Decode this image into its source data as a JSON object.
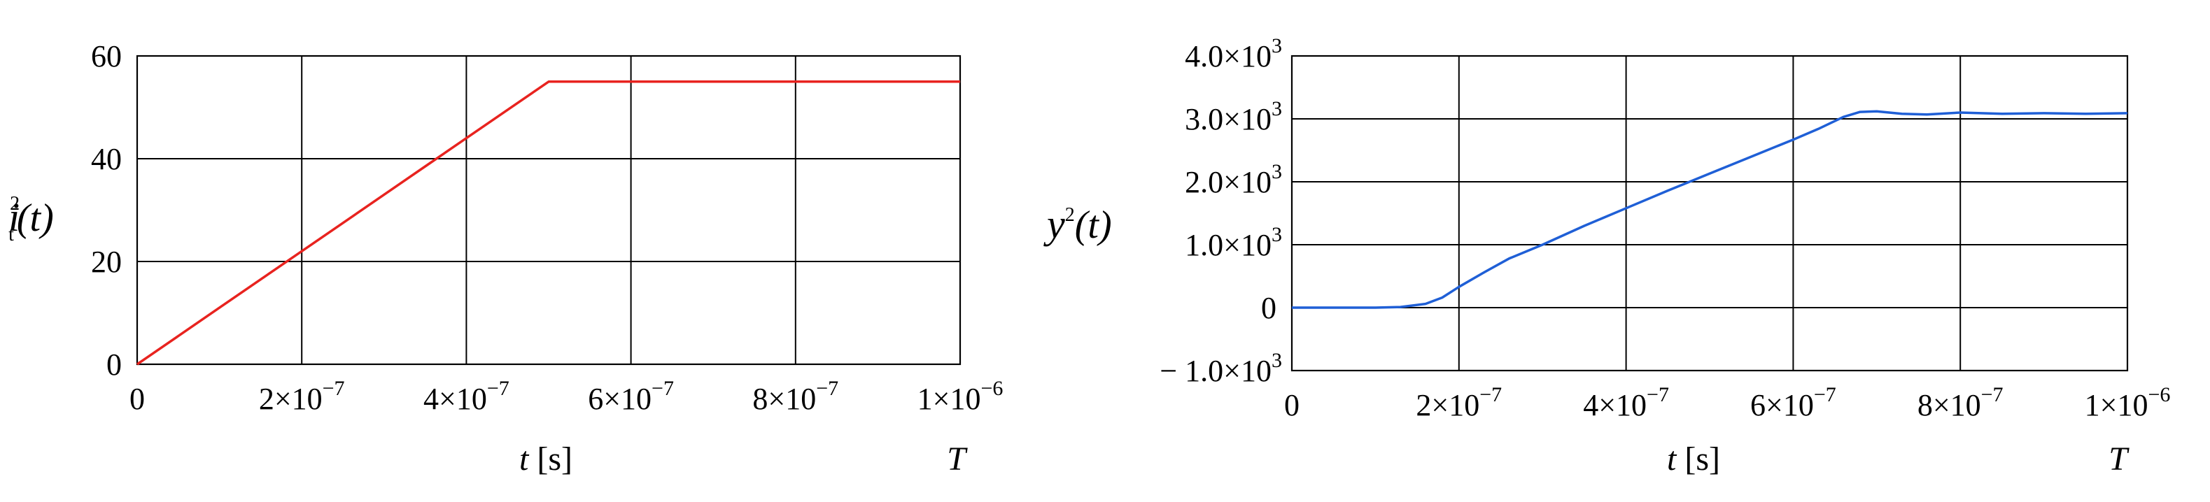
{
  "chart_data": [
    {
      "type": "line",
      "title": "",
      "xlabel": "t [s]",
      "xlabel_var": "t",
      "xlabel_unit": "[s]",
      "x_end_label": "T",
      "ylabel": "i_t^2(t)",
      "ylabel_parts": {
        "base": "i",
        "sub": "t",
        "sup": "2",
        "arg": "(t)"
      },
      "xlim": [
        0,
        1e-06
      ],
      "ylim": [
        0,
        60
      ],
      "grid": true,
      "x_ticks": [
        {
          "value": 0,
          "mant": "0",
          "exp": ""
        },
        {
          "value": 2e-07,
          "mant": "2×10",
          "exp": "−7"
        },
        {
          "value": 4e-07,
          "mant": "4×10",
          "exp": "−7"
        },
        {
          "value": 6e-07,
          "mant": "6×10",
          "exp": "−7"
        },
        {
          "value": 8e-07,
          "mant": "8×10",
          "exp": "−7"
        },
        {
          "value": 1e-06,
          "mant": "1×10",
          "exp": "−6"
        }
      ],
      "y_ticks": [
        {
          "value": 0,
          "mant": "0",
          "exp": ""
        },
        {
          "value": 20,
          "mant": "20",
          "exp": ""
        },
        {
          "value": 40,
          "mant": "40",
          "exp": ""
        },
        {
          "value": 60,
          "mant": "60",
          "exp": ""
        }
      ],
      "series": [
        {
          "color": "#e8231f",
          "x": [
            0,
            5e-08,
            1e-07,
            1.5e-07,
            2e-07,
            2.5e-07,
            3e-07,
            3.5e-07,
            4e-07,
            4.5e-07,
            5e-07,
            6e-07,
            7e-07,
            8e-07,
            9e-07,
            1e-06
          ],
          "y": [
            0,
            5.5,
            11,
            16.5,
            22,
            27.5,
            33,
            38.5,
            44,
            49.5,
            55,
            55,
            55,
            55,
            55,
            55
          ]
        }
      ]
    },
    {
      "type": "line",
      "title": "",
      "xlabel": "t [s]",
      "xlabel_var": "t",
      "xlabel_unit": "[s]",
      "x_end_label": "T",
      "ylabel": "y^2(t)",
      "ylabel_parts": {
        "base": "y",
        "sub": "",
        "sup": "2",
        "arg": "(t)"
      },
      "xlim": [
        0,
        1e-06
      ],
      "ylim": [
        -1000,
        4000
      ],
      "grid": true,
      "x_ticks": [
        {
          "value": 0,
          "mant": "0",
          "exp": ""
        },
        {
          "value": 2e-07,
          "mant": "2×10",
          "exp": "−7"
        },
        {
          "value": 4e-07,
          "mant": "4×10",
          "exp": "−7"
        },
        {
          "value": 6e-07,
          "mant": "6×10",
          "exp": "−7"
        },
        {
          "value": 8e-07,
          "mant": "8×10",
          "exp": "−7"
        },
        {
          "value": 1e-06,
          "mant": "1×10",
          "exp": "−6"
        }
      ],
      "y_ticks": [
        {
          "value": -1000,
          "mant": "− 1.0×10",
          "exp": "3"
        },
        {
          "value": 0,
          "mant": "0",
          "exp": ""
        },
        {
          "value": 1000,
          "mant": "1.0×10",
          "exp": "3"
        },
        {
          "value": 2000,
          "mant": "2.0×10",
          "exp": "3"
        },
        {
          "value": 3000,
          "mant": "3.0×10",
          "exp": "3"
        },
        {
          "value": 4000,
          "mant": "4.0×10",
          "exp": "3"
        }
      ],
      "series": [
        {
          "color": "#1f5fd6",
          "x": [
            0,
            5e-08,
            1e-07,
            1.3e-07,
            1.6e-07,
            1.8e-07,
            2e-07,
            2.3e-07,
            2.6e-07,
            3e-07,
            3.5e-07,
            4e-07,
            4.5e-07,
            5e-07,
            5.5e-07,
            6e-07,
            6.3e-07,
            6.6e-07,
            6.8e-07,
            7e-07,
            7.3e-07,
            7.6e-07,
            8e-07,
            8.5e-07,
            9e-07,
            9.5e-07,
            1e-06
          ],
          "y": [
            0,
            0,
            0,
            10,
            60,
            160,
            330,
            560,
            780,
            1000,
            1300,
            1580,
            1860,
            2130,
            2400,
            2670,
            2840,
            3030,
            3110,
            3120,
            3080,
            3070,
            3100,
            3080,
            3090,
            3080,
            3090
          ]
        }
      ]
    }
  ]
}
